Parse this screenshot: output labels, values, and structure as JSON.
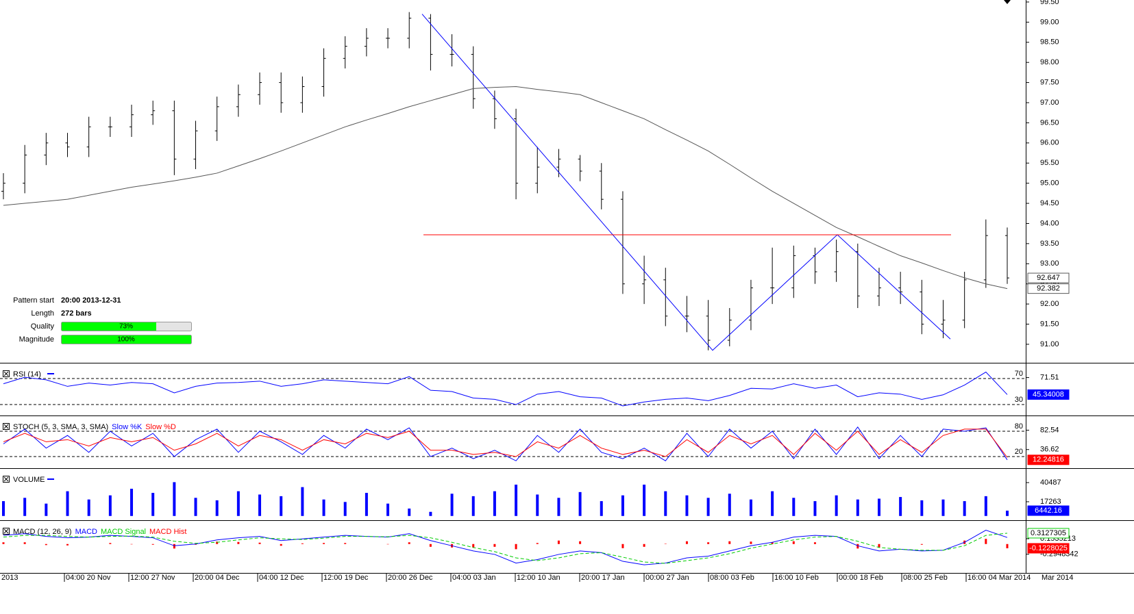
{
  "chart_data": [
    {
      "type": "ohlc",
      "color": "#000000",
      "ma_color": "#555555",
      "open": [
        94.8,
        95.0,
        95.7,
        96.0,
        95.9,
        96.4,
        96.4,
        96.7,
        96.8,
        95.6,
        96.3,
        96.9,
        97.2,
        97.5,
        97.0,
        97.4,
        98.1,
        98.4,
        98.6,
        98.6,
        99.1,
        98.2,
        98.2,
        97.1,
        96.6,
        95.0,
        95.4,
        95.6,
        95.3,
        94.6,
        92.5,
        92.6,
        91.7,
        91.7,
        91.1,
        91.6,
        92.4,
        92.4,
        93.2,
        92.8,
        93.3,
        92.2,
        92.4,
        92.3,
        91.5,
        91.6,
        92.6,
        93.7
      ],
      "high": [
        95.25,
        95.95,
        96.25,
        96.25,
        96.65,
        96.65,
        96.95,
        97.05,
        97.05,
        96.55,
        97.15,
        97.45,
        97.75,
        97.75,
        97.65,
        98.35,
        98.65,
        98.85,
        98.85,
        99.25,
        99.2,
        98.7,
        98.4,
        97.3,
        96.85,
        95.9,
        95.85,
        95.7,
        95.5,
        94.8,
        93.2,
        92.9,
        92.2,
        92.1,
        91.9,
        92.6,
        93.4,
        93.45,
        93.4,
        93.6,
        93.5,
        92.9,
        92.8,
        92.6,
        92.1,
        92.8,
        94.1,
        93.9
      ],
      "low": [
        94.6,
        94.75,
        95.45,
        95.65,
        95.65,
        96.15,
        96.15,
        96.45,
        95.2,
        95.35,
        96.05,
        96.65,
        96.95,
        96.75,
        96.75,
        97.15,
        97.85,
        98.15,
        98.35,
        98.35,
        97.8,
        97.9,
        96.85,
        96.35,
        94.6,
        94.75,
        95.15,
        95.05,
        94.35,
        92.25,
        92.0,
        91.45,
        91.3,
        90.85,
        90.95,
        91.35,
        92.0,
        92.15,
        92.5,
        92.55,
        91.9,
        91.95,
        92.0,
        91.25,
        91.15,
        91.4,
        92.4,
        92.5
      ],
      "close": [
        95.0,
        95.7,
        96.0,
        95.9,
        96.4,
        96.4,
        96.7,
        96.8,
        95.6,
        96.3,
        96.9,
        97.2,
        97.5,
        97.0,
        97.4,
        98.1,
        98.4,
        98.6,
        98.6,
        99.1,
        98.2,
        98.2,
        97.1,
        96.6,
        95.0,
        95.4,
        95.6,
        95.3,
        94.6,
        92.5,
        92.6,
        91.7,
        91.7,
        91.1,
        91.6,
        92.4,
        92.4,
        93.2,
        92.8,
        93.3,
        92.2,
        92.4,
        92.3,
        91.5,
        91.6,
        92.6,
        93.7,
        92.647
      ],
      "ma": [
        94.45,
        94.5,
        94.55,
        94.6,
        94.7,
        94.8,
        94.9,
        94.98,
        95.06,
        95.15,
        95.25,
        95.43,
        95.61,
        95.8,
        96.0,
        96.2,
        96.4,
        96.57,
        96.73,
        96.9,
        97.05,
        97.2,
        97.35,
        97.38,
        97.4,
        97.33,
        97.27,
        97.2,
        97.0,
        96.8,
        96.6,
        96.33,
        96.07,
        95.8,
        95.47,
        95.13,
        94.8,
        94.5,
        94.2,
        93.9,
        93.67,
        93.43,
        93.2,
        93.02,
        92.83,
        92.65,
        92.5,
        92.382
      ],
      "pattern": {
        "trend_points": [
          99.2,
          90.85,
          93.72,
          91.13
        ],
        "neckline": 93.72,
        "trend_color": "#0000ff",
        "neckline_color": "#ff0000"
      },
      "ylim": [
        90.54,
        99.55
      ],
      "yticks": [
        {
          "value": 91,
          "label": "91.00"
        },
        {
          "value": 91.5,
          "label": "91.50"
        },
        {
          "value": 92,
          "label": "92.00"
        },
        {
          "value": 92.5,
          "label": "92.50"
        },
        {
          "value": 93,
          "label": "93.00"
        },
        {
          "value": 93.5,
          "label": "93.50"
        },
        {
          "value": 94,
          "label": "94.00"
        },
        {
          "value": 94.5,
          "label": "94.50"
        },
        {
          "value": 95,
          "label": "95.00"
        },
        {
          "value": 95.5,
          "label": "95.50"
        },
        {
          "value": 96,
          "label": "96.00"
        },
        {
          "value": 96.5,
          "label": "96.50"
        },
        {
          "value": 97,
          "label": "97.00"
        },
        {
          "value": 97.5,
          "label": "97.50"
        },
        {
          "value": 98,
          "label": "98.00"
        },
        {
          "value": 98.5,
          "label": "98.50"
        },
        {
          "value": 99,
          "label": "99.00"
        },
        {
          "value": 99.5,
          "label": "99.50"
        }
      ]
    },
    {
      "type": "line",
      "title": "RSI (14)",
      "color": "#0000ff",
      "values": [
        62,
        72,
        68,
        58,
        63,
        60,
        64,
        62,
        48,
        58,
        63,
        64,
        66,
        58,
        62,
        68,
        66,
        64,
        62,
        73,
        52,
        50,
        40,
        38,
        30,
        46,
        50,
        42,
        40,
        28,
        34,
        38,
        40,
        36,
        44,
        55,
        54,
        62,
        55,
        60,
        42,
        48,
        46,
        38,
        45,
        60,
        80,
        45.34008
      ],
      "levels": [
        70,
        30
      ],
      "ylim": [
        15.3,
        85.8
      ],
      "yticks": [
        71.51
      ]
    },
    {
      "type": "line",
      "title": "STOCH (5, 3, SMA, 3, SMA)",
      "series": [
        {
          "name": "Slow %K",
          "color": "#0000ff",
          "values": [
            50,
            85,
            40,
            70,
            30,
            80,
            45,
            75,
            20,
            60,
            85,
            30,
            80,
            55,
            25,
            70,
            40,
            85,
            60,
            88,
            20,
            40,
            15,
            35,
            10,
            70,
            30,
            85,
            30,
            15,
            40,
            10,
            75,
            20,
            85,
            40,
            80,
            15,
            85,
            25,
            90,
            15,
            70,
            20,
            85,
            80,
            88,
            12.24816
          ]
        },
        {
          "name": "Slow %D",
          "color": "#ff0000",
          "values": [
            55,
            75,
            55,
            60,
            45,
            65,
            55,
            65,
            35,
            50,
            75,
            45,
            70,
            60,
            35,
            60,
            50,
            75,
            65,
            80,
            35,
            35,
            25,
            30,
            20,
            55,
            40,
            70,
            40,
            25,
            35,
            20,
            60,
            30,
            70,
            50,
            70,
            25,
            75,
            35,
            80,
            25,
            60,
            30,
            70,
            85,
            85,
            18
          ]
        }
      ],
      "levels": [
        80,
        20
      ],
      "ylim": [
        -4.3,
        104.3
      ],
      "yticks": [
        82.54,
        36.62
      ]
    },
    {
      "type": "bar",
      "title": "VOLUME",
      "color": "#0000ff",
      "values": [
        18000,
        22000,
        15000,
        30000,
        20000,
        25000,
        33000,
        28000,
        41000,
        22000,
        19000,
        30000,
        26000,
        24000,
        35000,
        20000,
        17000,
        28000,
        15000,
        9000,
        5000,
        27000,
        24000,
        30000,
        38000,
        26000,
        22000,
        29000,
        18000,
        25000,
        38000,
        30000,
        25000,
        22000,
        27000,
        20000,
        30000,
        22000,
        18000,
        25000,
        20000,
        21000,
        23000,
        19000,
        20000,
        18000,
        24000,
        6442.16
      ],
      "ylim": [
        -3500,
        51300
      ],
      "yticks": [
        40487,
        17263
      ]
    },
    {
      "type": "macd",
      "title": "MACD (12, 26, 9)",
      "series": [
        {
          "name": "MACD",
          "color": "#0000ff",
          "values": [
            0.25,
            0.3,
            0.22,
            0.18,
            0.2,
            0.25,
            0.22,
            0.18,
            -0.05,
            0.0,
            0.12,
            0.18,
            0.22,
            0.1,
            0.15,
            0.2,
            0.25,
            0.22,
            0.2,
            0.3,
            0.1,
            -0.05,
            -0.2,
            -0.3,
            -0.55,
            -0.45,
            -0.3,
            -0.2,
            -0.25,
            -0.5,
            -0.6,
            -0.55,
            -0.4,
            -0.35,
            -0.2,
            -0.05,
            0.05,
            0.2,
            0.25,
            0.22,
            -0.05,
            -0.2,
            -0.15,
            -0.2,
            -0.18,
            0.05,
            0.4,
            0.19
          ]
        },
        {
          "name": "MACD Signal",
          "color": "#00cc00",
          "values": [
            0.2,
            0.25,
            0.25,
            0.22,
            0.2,
            0.22,
            0.23,
            0.2,
            0.08,
            0.02,
            0.05,
            0.12,
            0.18,
            0.15,
            0.13,
            0.17,
            0.22,
            0.22,
            0.21,
            0.25,
            0.18,
            0.05,
            -0.1,
            -0.22,
            -0.4,
            -0.48,
            -0.4,
            -0.28,
            -0.25,
            -0.38,
            -0.52,
            -0.56,
            -0.48,
            -0.4,
            -0.28,
            -0.12,
            0.0,
            0.12,
            0.2,
            0.22,
            0.08,
            -0.1,
            -0.15,
            -0.18,
            -0.18,
            -0.05,
            0.25,
            0.3127305
          ]
        },
        {
          "name": "MACD Hist",
          "color": "#ff0000",
          "values": [
            0.05,
            0.05,
            -0.03,
            -0.04,
            0,
            0.03,
            -0.01,
            -0.02,
            -0.13,
            -0.02,
            0.07,
            0.06,
            0.04,
            -0.05,
            0.02,
            0.03,
            0.03,
            0,
            -0.01,
            0.05,
            -0.08,
            -0.1,
            -0.1,
            -0.08,
            -0.15,
            0.03,
            0.1,
            0.08,
            0,
            -0.12,
            -0.08,
            0.01,
            0.08,
            0.05,
            0.08,
            0.07,
            0.05,
            0.08,
            0.05,
            0,
            -0.13,
            -0.1,
            0,
            -0.02,
            0,
            0.1,
            0.15,
            -0.1228025
          ]
        }
      ],
      "ylim": [
        -0.816,
        0.53
      ],
      "yticks": [
        0.1535213,
        -0.2948342
      ]
    }
  ],
  "x_axis_labels": [
    "2013",
    "04:00 20 Nov",
    "12:00 27 Nov",
    "20:00 04 Dec",
    "04:00 12 Dec",
    "12:00 19 Dec",
    "20:00 26 Dec",
    "04:00 03 Jan",
    "12:00 10 Jan",
    "20:00 17 Jan",
    "00:00 27 Jan",
    "08:00 03 Feb",
    "16:00 10 Feb",
    "00:00 18 Feb",
    "08:00 25 Feb",
    "16:00 04 Mar 2014",
    "Mar 2014"
  ],
  "pattern_info": {
    "rows": [
      {
        "label": "Pattern start",
        "value": "20:00 2013-12-31"
      },
      {
        "label": "Length",
        "value": "272 bars"
      }
    ],
    "bars": [
      {
        "label": "Quality",
        "value": 73,
        "value_label": "73%"
      },
      {
        "label": "Magnitude",
        "value": 100,
        "value_label": "100%"
      }
    ]
  }
}
